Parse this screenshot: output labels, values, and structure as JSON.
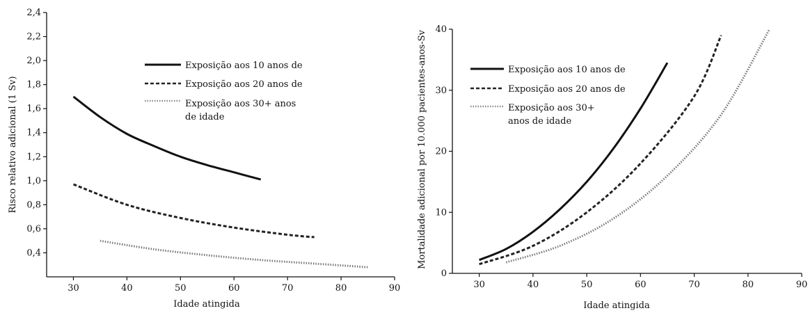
{
  "chart_data": [
    {
      "type": "line",
      "xlabel": "Idade atingida",
      "ylabel": "Risco relativo adicional (1 Sv)",
      "xlim": [
        25,
        90
      ],
      "ylim": [
        0.2,
        2.4
      ],
      "xticks": [
        30,
        40,
        50,
        60,
        70,
        80,
        90
      ],
      "yticks": [
        0.4,
        0.6,
        0.8,
        1.0,
        1.2,
        1.4,
        1.6,
        1.8,
        2.0,
        2.2,
        2.4
      ],
      "ytick_labels": [
        "0,4",
        "0,6",
        "0,8",
        "1,0",
        "1,2",
        "1,4",
        "1,6",
        "1,8",
        "2,0",
        "2,2",
        "2,4"
      ],
      "legend_position": "top-right",
      "series": [
        {
          "name": "Exposição aos 10 anos de",
          "style": "solid",
          "color": "#111111",
          "x": [
            30,
            35,
            40,
            45,
            50,
            55,
            60,
            65
          ],
          "y": [
            1.7,
            1.53,
            1.39,
            1.29,
            1.2,
            1.13,
            1.07,
            1.01
          ]
        },
        {
          "name": "Exposição aos 20 anos de",
          "style": "dashed",
          "color": "#222222",
          "x": [
            30,
            40,
            50,
            60,
            70,
            75
          ],
          "y": [
            0.97,
            0.8,
            0.69,
            0.61,
            0.55,
            0.53
          ]
        },
        {
          "name": "Exposição aos 30+ anos de idade",
          "style": "dotted",
          "color": "#777777",
          "x": [
            35,
            45,
            55,
            65,
            75,
            85
          ],
          "y": [
            0.5,
            0.43,
            0.38,
            0.34,
            0.31,
            0.28
          ]
        }
      ]
    },
    {
      "type": "line",
      "xlabel": "Idade atingida",
      "ylabel": "Mortalidade adicional por 10.000 pacientes-anos-Sv",
      "xlim": [
        25,
        90
      ],
      "ylim": [
        0,
        40
      ],
      "xticks": [
        30,
        40,
        50,
        60,
        70,
        80,
        90
      ],
      "yticks": [
        0,
        10,
        20,
        30,
        40
      ],
      "ytick_labels": [
        "0",
        "10",
        "20",
        "30",
        "40"
      ],
      "legend_position": "top-left",
      "series": [
        {
          "name": "Exposição aos 10 anos de",
          "style": "solid",
          "color": "#111111",
          "x": [
            30,
            35,
            40,
            45,
            50,
            55,
            60,
            65
          ],
          "y": [
            2.2,
            4.0,
            6.8,
            10.5,
            15.0,
            20.5,
            27.0,
            34.5
          ]
        },
        {
          "name": "Exposição aos 20 anos de",
          "style": "dashed",
          "color": "#222222",
          "x": [
            30,
            40,
            50,
            60,
            70,
            75
          ],
          "y": [
            1.5,
            4.5,
            10.0,
            18.0,
            29.0,
            39.0
          ]
        },
        {
          "name": "Exposição aos 30+ anos de idade",
          "style": "dotted",
          "color": "#777777",
          "x": [
            35,
            45,
            55,
            65,
            75,
            84
          ],
          "y": [
            1.8,
            4.5,
            9.0,
            16.0,
            26.0,
            40.0
          ]
        }
      ]
    }
  ],
  "legend_left": {
    "line1": "Exposição aos 10 anos de",
    "line2": "Exposição aos 20 anos de",
    "line3a": "Exposição aos 30+ anos",
    "line3b": "de idade"
  },
  "legend_right": {
    "line1": "Exposição aos 10 anos de",
    "line2": "Exposição aos 20 anos de",
    "line3a": "Exposição aos 30+",
    "line3b": "anos de idade"
  }
}
